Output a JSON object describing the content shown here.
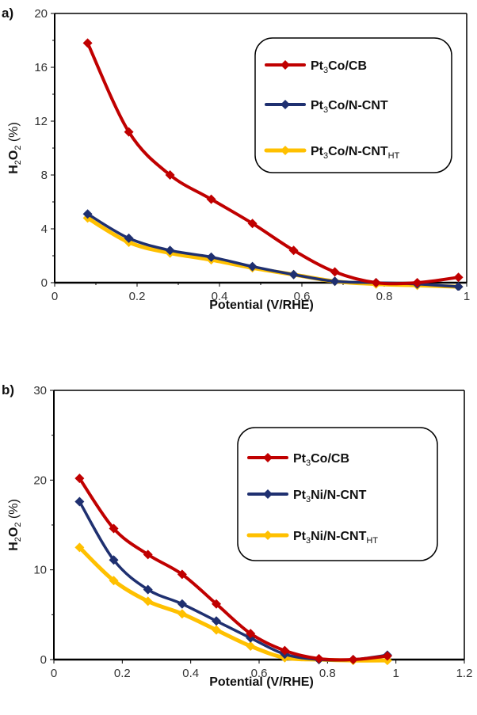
{
  "chart_data": [
    {
      "type": "line",
      "panel_label": "a)",
      "title": "",
      "xlabel": "Potential (V/RHE)",
      "ylabel": "H2O2 (%)",
      "ylabel_parts": {
        "main": "H",
        "sub1": "2",
        "mid": "O",
        "sub2": "2",
        "rest": " (%)"
      },
      "xlim": [
        0,
        1
      ],
      "ylim": [
        0,
        20
      ],
      "xticks": [
        0,
        0.2,
        0.4,
        0.6,
        0.8,
        1
      ],
      "xtick_labels": [
        "0",
        "0.2",
        "0.4",
        "0.6",
        "0.8",
        "1"
      ],
      "yticks": [
        0,
        4,
        8,
        12,
        16,
        20
      ],
      "ytick_labels": [
        "0",
        "4",
        "8",
        "12",
        "16",
        "20"
      ],
      "grid": false,
      "legend_position": "top-right",
      "x": [
        0.08,
        0.18,
        0.28,
        0.38,
        0.48,
        0.58,
        0.68,
        0.78,
        0.88,
        0.98
      ],
      "series": [
        {
          "name": "Pt3Co/CB",
          "label_parts": {
            "a": "Pt",
            "sub": "3",
            "b": "Co/CB",
            "sub2": ""
          },
          "color": "#c00000",
          "values": [
            17.8,
            11.2,
            8.0,
            6.2,
            4.4,
            2.4,
            0.8,
            0.0,
            0.0,
            0.4
          ]
        },
        {
          "name": "Pt3Co/N-CNT",
          "label_parts": {
            "a": "Pt",
            "sub": "3",
            "b": "Co/N-CNT",
            "sub2": ""
          },
          "color": "#1f3070",
          "values": [
            5.1,
            3.3,
            2.4,
            1.9,
            1.2,
            0.6,
            0.1,
            0.0,
            -0.1,
            -0.3
          ]
        },
        {
          "name": "Pt3Co/N-CNTHT",
          "label_parts": {
            "a": "Pt",
            "sub": "3",
            "b": "Co/N-CNT",
            "sub2": "HT"
          },
          "color": "#ffc000",
          "values": [
            4.8,
            3.0,
            2.2,
            1.7,
            1.1,
            0.6,
            0.1,
            -0.1,
            -0.2,
            -0.3
          ]
        }
      ]
    },
    {
      "type": "line",
      "panel_label": "b)",
      "title": "",
      "xlabel": "Potential (V/RHE)",
      "ylabel": "H2O2 (%)",
      "ylabel_parts": {
        "main": "H",
        "sub1": "2",
        "mid": "O",
        "sub2": "2",
        "rest": " (%)"
      },
      "xlim": [
        0,
        1.2
      ],
      "ylim": [
        0,
        30
      ],
      "xticks": [
        0,
        0.2,
        0.4,
        0.6,
        0.8,
        1,
        1.2
      ],
      "xtick_labels": [
        "0",
        "0.2",
        "0.4",
        "0.6",
        "0.8",
        "1",
        "1.2"
      ],
      "yticks": [
        0,
        10,
        20,
        30
      ],
      "ytick_labels": [
        "0",
        "10",
        "20",
        "30"
      ],
      "grid": false,
      "legend_position": "top-right",
      "x": [
        0.075,
        0.175,
        0.275,
        0.375,
        0.475,
        0.575,
        0.675,
        0.775,
        0.875,
        0.975
      ],
      "series": [
        {
          "name": "Pt3Co/CB",
          "label_parts": {
            "a": "Pt",
            "sub": "3",
            "b": "Co/CB",
            "sub2": ""
          },
          "color": "#c00000",
          "values": [
            20.2,
            14.6,
            11.7,
            9.5,
            6.2,
            2.9,
            1.0,
            0.1,
            0.0,
            0.4
          ]
        },
        {
          "name": "Pt3Ni/N-CNT",
          "label_parts": {
            "a": "Pt",
            "sub": "3",
            "b": "Ni/N-CNT",
            "sub2": ""
          },
          "color": "#1f3070",
          "values": [
            17.6,
            11.1,
            7.8,
            6.2,
            4.3,
            2.4,
            0.6,
            0.0,
            0.0,
            0.5
          ]
        },
        {
          "name": "Pt3Ni/N-CNTHT",
          "label_parts": {
            "a": "Pt",
            "sub": "3",
            "b": "Ni/N-CNT",
            "sub2": "HT"
          },
          "color": "#ffc000",
          "values": [
            12.5,
            8.8,
            6.5,
            5.1,
            3.3,
            1.5,
            0.2,
            0.0,
            -0.1,
            -0.1
          ]
        }
      ]
    }
  ]
}
